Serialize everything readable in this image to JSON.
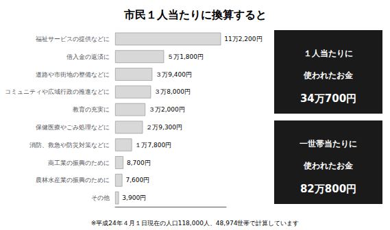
{
  "chart_data": {
    "type": "bar",
    "orientation": "horizontal",
    "title": "市民１人当たりに換算すると",
    "categories": [
      "福祉サービスの提供などに",
      "借入金の返済に",
      "道路や市街地の整備などに",
      "コミュニティや広域行政の推進などに",
      "教育の充実に",
      "保健医療やごみ処理などに",
      "消防、救急や防災対策などに",
      "商工業の振興のために",
      "農林水産業の振興のために",
      "その他"
    ],
    "values": [
      112200,
      51800,
      39400,
      38000,
      32000,
      29300,
      17800,
      8700,
      7600,
      3900
    ],
    "value_labels": [
      "11万2,200円",
      "５万1,800円",
      "３万9,400円",
      "３万8,000円",
      "３万2,000円",
      "２万9,300円",
      "１万7,800円",
      "8,700円",
      "7,600円",
      "3,900円"
    ],
    "data_labels": true,
    "color": "#d8d8d8",
    "xlim": [
      0,
      117810
    ],
    "tick_labels": "y",
    "grid": false,
    "annotations": [
      [
        "１人当たりに",
        "使われたお金",
        "34万700円"
      ],
      [
        "一世帯当たりに",
        "使われたお金",
        "82万800円"
      ]
    ],
    "footnote": "※平成24年４月１日現在の人口118,000人、48,974世帯で計算しています"
  }
}
